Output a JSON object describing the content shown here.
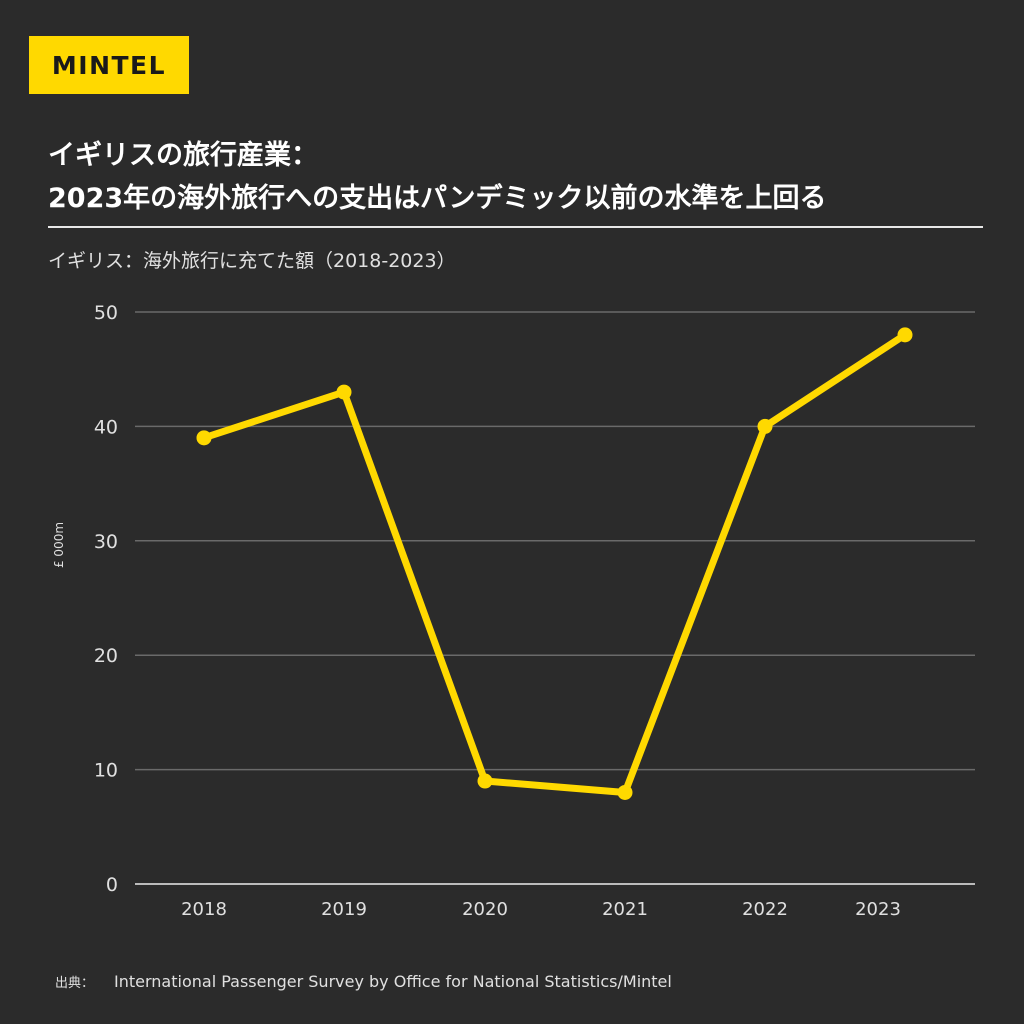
{
  "brand": {
    "logo_text": "MINTEL",
    "accent": "#ffd900",
    "background": "#2b2b2b"
  },
  "header": {
    "title_line1": "イギリスの旅行産業：",
    "title_line2": "2023年の海外旅行への支出はパンデミック以前の水準を上回る",
    "subtitle": "イギリス：海外旅行に充てた額（2018-2023）"
  },
  "source": {
    "label": "出典：",
    "text": "International Passenger Survey by Office for National Statistics/Mintel"
  },
  "chart_data": {
    "type": "line",
    "categories": [
      "2018",
      "2019",
      "2020",
      "2021",
      "2022",
      "2023"
    ],
    "values": [
      39,
      43,
      9,
      8,
      40,
      48
    ],
    "ylabel": "£ 000m",
    "ylim": [
      0,
      50
    ],
    "yticks": [
      "0",
      "10",
      "20",
      "30",
      "40",
      "50"
    ],
    "grid": true,
    "line_color": "#ffd900"
  }
}
